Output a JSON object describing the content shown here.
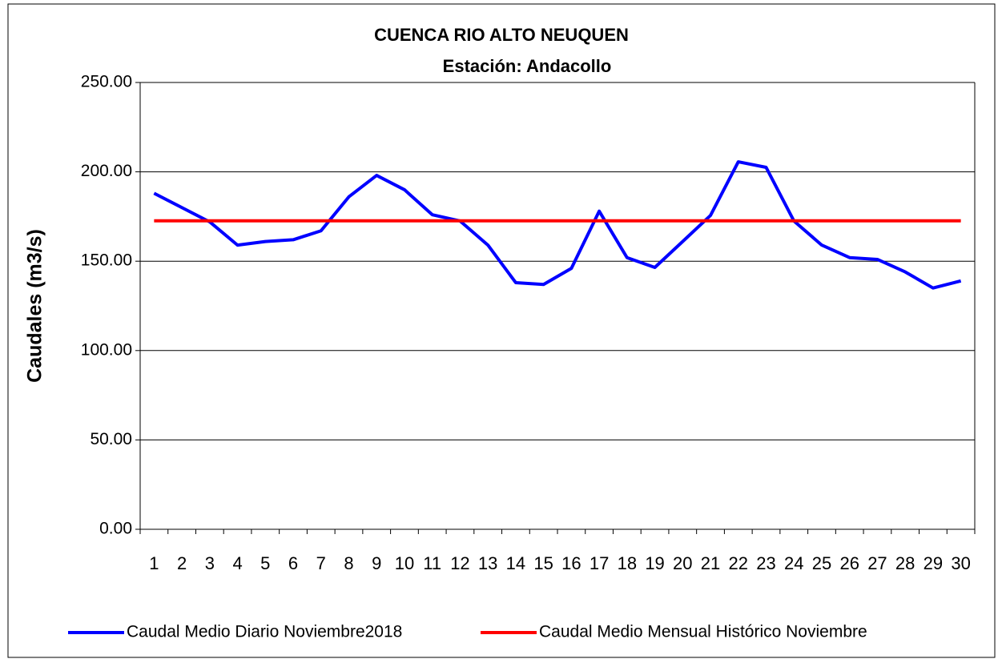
{
  "chart_data": {
    "type": "line",
    "title": "CUENCA RIO ALTO NEUQUEN",
    "subtitle": "Estación: Andacollo",
    "y_label": "Caudales (m3/s)",
    "categories": [
      "1",
      "2",
      "3",
      "4",
      "5",
      "6",
      "7",
      "8",
      "9",
      "10",
      "11",
      "12",
      "13",
      "14",
      "15",
      "16",
      "17",
      "18",
      "19",
      "20",
      "21",
      "22",
      "23",
      "24",
      "25",
      "26",
      "27",
      "28",
      "29",
      "30"
    ],
    "series": [
      {
        "name": "Caudal Medio Diario Noviembre2018",
        "color": "#0000ff",
        "values": [
          188,
          180,
          172,
          159,
          161,
          162,
          167,
          186,
          198,
          190,
          176,
          172.5,
          159,
          138,
          137,
          146,
          178,
          152,
          146.5,
          161,
          175.6,
          205.6,
          202.5,
          172.5,
          159,
          152,
          151,
          144,
          135,
          139
        ]
      },
      {
        "name": "Caudal Medio Mensual Histórico Noviembre",
        "color": "#ff0000",
        "values": [
          172.6,
          172.6,
          172.6,
          172.6,
          172.6,
          172.6,
          172.6,
          172.6,
          172.6,
          172.6,
          172.6,
          172.6,
          172.6,
          172.6,
          172.6,
          172.6,
          172.6,
          172.6,
          172.6,
          172.6,
          172.6,
          172.6,
          172.6,
          172.6,
          172.6,
          172.6,
          172.6,
          172.6,
          172.6,
          172.6
        ]
      }
    ],
    "ylim": [
      0,
      250
    ],
    "yticks": [
      {
        "value": 0,
        "label": "0.00"
      },
      {
        "value": 50,
        "label": "50.00"
      },
      {
        "value": 100,
        "label": "100.00"
      },
      {
        "value": 150,
        "label": "150.00"
      },
      {
        "value": 200,
        "label": "200.00"
      },
      {
        "value": 250,
        "label": "250.00"
      }
    ],
    "grid": true,
    "legend": "bottom"
  }
}
